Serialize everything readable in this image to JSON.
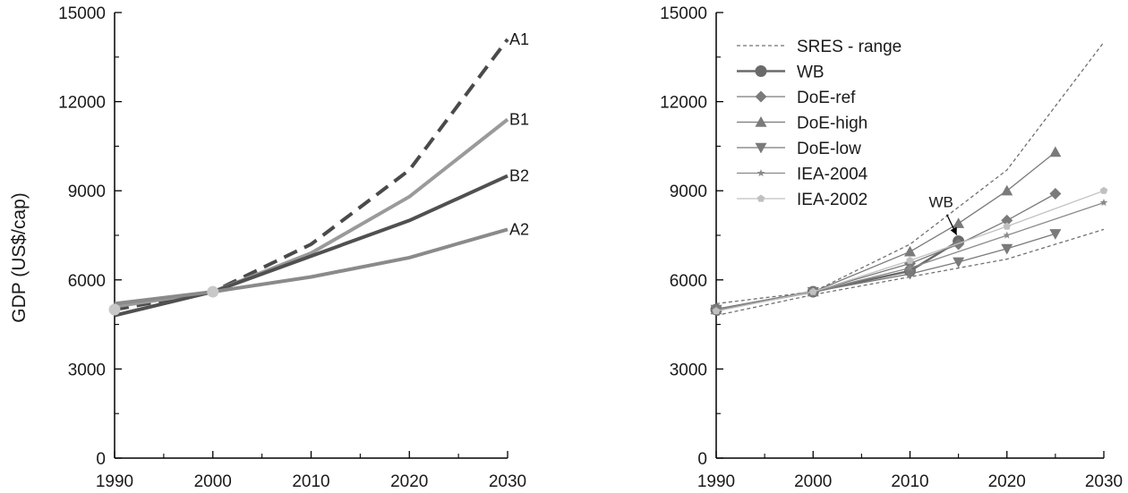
{
  "chart_data": [
    {
      "type": "line",
      "ylabel": "GDP (US$/cap)",
      "xlim": [
        1990,
        2030
      ],
      "ylim": [
        0,
        15000
      ],
      "xticks": [
        "1990",
        "2000",
        "2010",
        "2020",
        "2030"
      ],
      "yticks": [
        "0",
        "3000",
        "6000",
        "9000",
        "12000",
        "15000"
      ],
      "grid": false,
      "series": [
        {
          "name": "A1",
          "style": "dashed",
          "color": "#4a4a4a",
          "x": [
            1990,
            2000,
            2010,
            2020,
            2030
          ],
          "values": [
            5000,
            5600,
            7200,
            9700,
            14100
          ]
        },
        {
          "name": "B1",
          "style": "solid",
          "color": "#9a9a9a",
          "x": [
            1990,
            2000,
            2010,
            2020,
            2030
          ],
          "values": [
            5100,
            5600,
            6900,
            8800,
            11400
          ]
        },
        {
          "name": "B2",
          "style": "solid",
          "color": "#505050",
          "x": [
            1990,
            2000,
            2010,
            2020,
            2030
          ],
          "values": [
            4800,
            5600,
            6800,
            8000,
            9500
          ]
        },
        {
          "name": "A2",
          "style": "solid",
          "color": "#8a8a8a",
          "x": [
            1990,
            2000,
            2010,
            2020,
            2030
          ],
          "values": [
            5200,
            5600,
            6100,
            6750,
            7700
          ]
        }
      ]
    },
    {
      "type": "line",
      "ylabel": "",
      "xlim": [
        1990,
        2030
      ],
      "ylim": [
        0,
        15000
      ],
      "xticks": [
        "1990",
        "2000",
        "2010",
        "2020",
        "2030"
      ],
      "yticks": [
        "0",
        "3000",
        "6000",
        "9000",
        "12000",
        "15000"
      ],
      "grid": false,
      "legend_position": "top-left",
      "annotation": "WB",
      "series": [
        {
          "name": "SRES - range",
          "style": "dashed",
          "color": "#707070",
          "marker": "none",
          "x": [
            1990,
            2000,
            2010,
            2020,
            2030
          ],
          "values": [
            5200,
            5600,
            7200,
            9700,
            14000
          ],
          "x_lower": [
            1990,
            2000,
            2010,
            2020,
            2030
          ],
          "values_lower": [
            4800,
            5500,
            6100,
            6700,
            7700
          ]
        },
        {
          "name": "WB",
          "style": "solid",
          "color": "#6a6a6a",
          "marker": "circle",
          "x": [
            1990,
            2000,
            2010,
            2015
          ],
          "values": [
            5000,
            5600,
            6300,
            7300
          ]
        },
        {
          "name": "DoE-ref",
          "style": "solid",
          "color": "#7a7a7a",
          "marker": "diamond",
          "x": [
            1990,
            2000,
            2010,
            2015,
            2020,
            2025
          ],
          "values": [
            5000,
            5600,
            6550,
            7200,
            8000,
            8900
          ]
        },
        {
          "name": "DoE-high",
          "style": "solid",
          "color": "#7a7a7a",
          "marker": "triangle-up",
          "x": [
            1990,
            2000,
            2010,
            2015,
            2020,
            2025
          ],
          "values": [
            5000,
            5600,
            6950,
            7900,
            9000,
            10300
          ]
        },
        {
          "name": "DoE-low",
          "style": "solid",
          "color": "#7a7a7a",
          "marker": "triangle-down",
          "x": [
            1990,
            2000,
            2010,
            2015,
            2020,
            2025
          ],
          "values": [
            5000,
            5600,
            6200,
            6600,
            7050,
            7550
          ]
        },
        {
          "name": "IEA-2004",
          "style": "solid",
          "color": "#8a8a8a",
          "marker": "star",
          "x": [
            1990,
            2000,
            2010,
            2020,
            2030
          ],
          "values": [
            5000,
            5600,
            6400,
            7500,
            8600
          ]
        },
        {
          "name": "IEA-2002",
          "style": "solid",
          "color": "#c0c0c0",
          "marker": "pentagon",
          "x": [
            1990,
            2000,
            2010,
            2020,
            2030
          ],
          "values": [
            4950,
            5600,
            6650,
            7800,
            9000
          ]
        }
      ]
    }
  ]
}
